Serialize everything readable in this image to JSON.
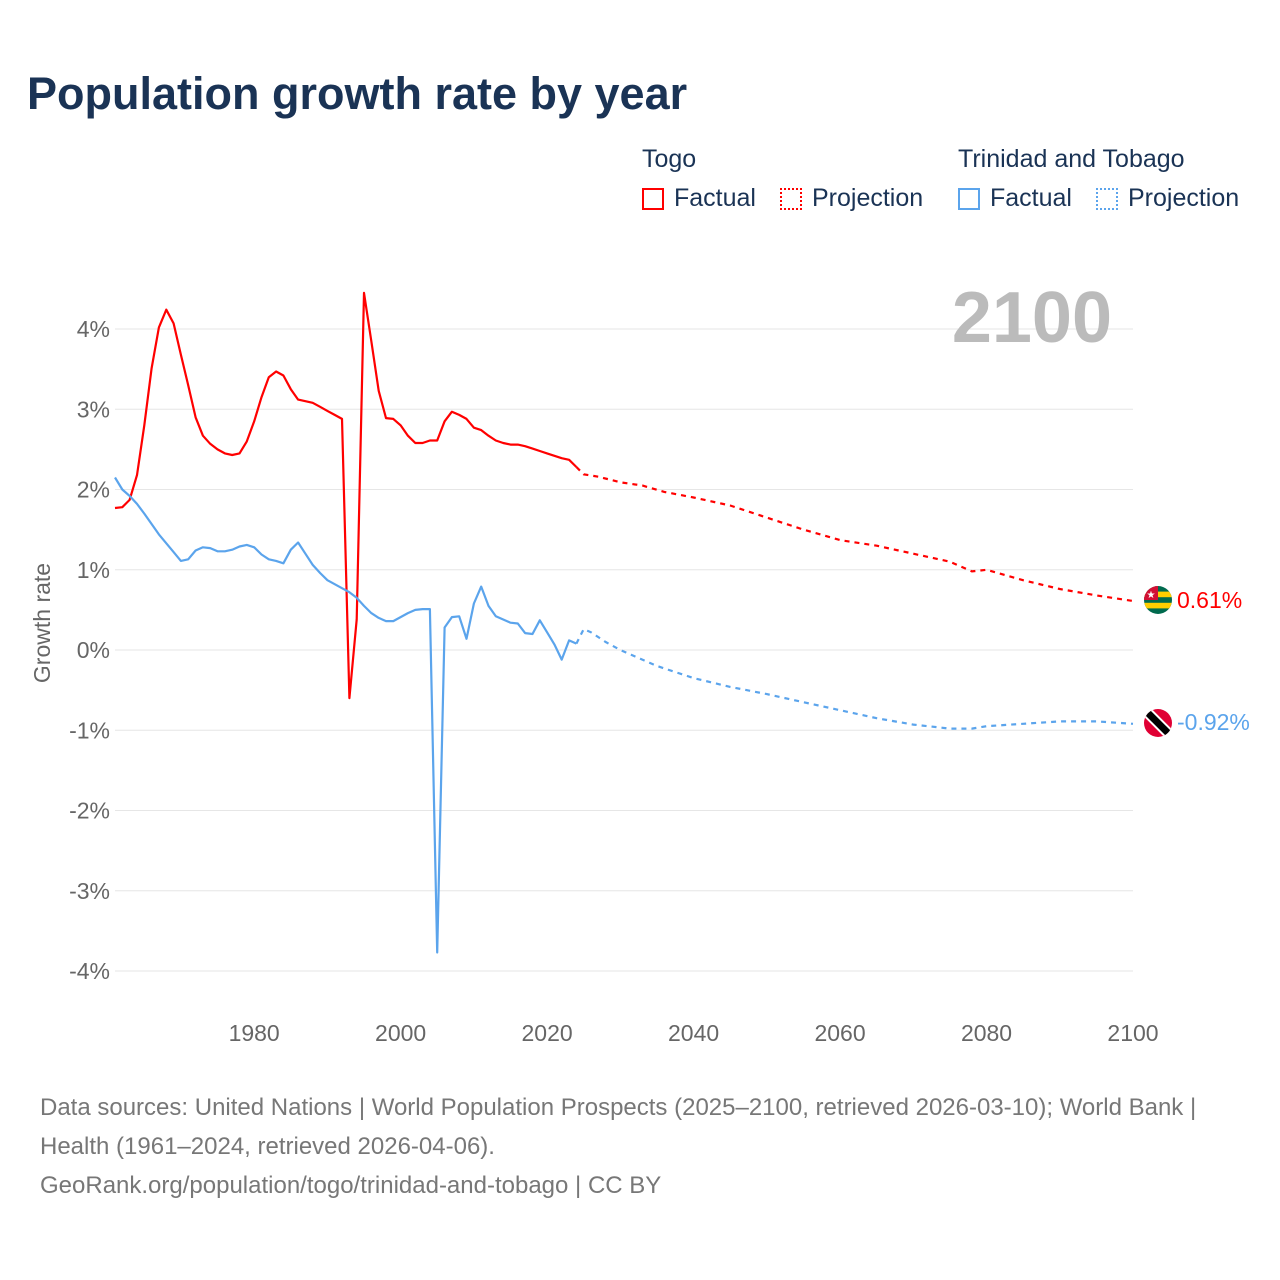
{
  "title": "Population growth rate by year",
  "legend": {
    "groups": [
      {
        "name": "Togo",
        "factual": "Factual",
        "projection": "Projection",
        "color": "#ff0000"
      },
      {
        "name": "Trinidad and Tobago",
        "factual": "Factual",
        "projection": "Projection",
        "color": "#5ba4ec"
      }
    ]
  },
  "year_label": "2100",
  "source": {
    "line1": "Data sources: United Nations | World Population Prospects (2025–2100, retrieved 2026-03-10); World Bank | Health (1961–2024, retrieved 2026-04-06).",
    "line2": "GeoRank.org/population/togo/trinidad-and-tobago | CC BY"
  },
  "chart_data": {
    "type": "line",
    "title": "Population growth rate by year",
    "xlabel": "",
    "ylabel": "Growth rate",
    "xlim": [
      1961,
      2100
    ],
    "ylim": [
      -4,
      4.5
    ],
    "x_ticks": [
      1980,
      2000,
      2020,
      2040,
      2060,
      2080,
      2100
    ],
    "x_tick_labels": [
      "1980",
      "2000",
      "2020",
      "2040",
      "2060",
      "2080",
      "2100"
    ],
    "y_ticks": [
      4,
      3,
      2,
      1,
      0,
      -1,
      -2,
      -3,
      -4
    ],
    "y_tick_labels": [
      "4%",
      "3%",
      "2%",
      "1%",
      "0%",
      "-1%",
      "-2%",
      "-3%",
      "-4%"
    ],
    "grid": true,
    "series": [
      {
        "name": "Togo",
        "color": "#ff0000",
        "end_label": "0.61%",
        "factual": {
          "x": [
            1961,
            1962,
            1963,
            1964,
            1965,
            1966,
            1967,
            1968,
            1969,
            1970,
            1971,
            1972,
            1973,
            1974,
            1975,
            1976,
            1977,
            1978,
            1979,
            1980,
            1981,
            1982,
            1983,
            1984,
            1985,
            1986,
            1987,
            1988,
            1989,
            1990,
            1991,
            1992,
            1993,
            1994,
            1995,
            1996,
            1997,
            1998,
            1999,
            2000,
            2001,
            2002,
            2003,
            2004,
            2005,
            2006,
            2007,
            2008,
            2009,
            2010,
            2011,
            2012,
            2013,
            2014,
            2015,
            2016,
            2017,
            2018,
            2019,
            2020,
            2021,
            2022,
            2023,
            2024
          ],
          "y": [
            1.77,
            1.78,
            1.87,
            2.18,
            2.8,
            3.51,
            4.02,
            4.24,
            4.07,
            3.68,
            3.3,
            2.9,
            2.67,
            2.57,
            2.5,
            2.45,
            2.43,
            2.45,
            2.6,
            2.85,
            3.15,
            3.4,
            3.47,
            3.42,
            3.25,
            3.12,
            3.1,
            3.08,
            3.03,
            2.98,
            2.93,
            2.88,
            -0.6,
            0.38,
            4.45,
            3.85,
            3.23,
            2.89,
            2.88,
            2.8,
            2.67,
            2.58,
            2.58,
            2.61,
            2.61,
            2.85,
            2.97,
            2.93,
            2.88,
            2.77,
            2.74,
            2.67,
            2.61,
            2.58,
            2.56,
            2.56,
            2.54,
            2.51,
            2.48,
            2.45,
            2.42,
            2.39,
            2.37,
            2.28
          ]
        },
        "projection": {
          "x": [
            2024,
            2025,
            2027,
            2030,
            2033,
            2036,
            2040,
            2045,
            2050,
            2055,
            2060,
            2065,
            2070,
            2075,
            2078,
            2080,
            2085,
            2090,
            2095,
            2100
          ],
          "y": [
            2.28,
            2.19,
            2.16,
            2.09,
            2.05,
            1.97,
            1.9,
            1.8,
            1.65,
            1.5,
            1.37,
            1.3,
            1.2,
            1.1,
            0.98,
            1.0,
            0.87,
            0.76,
            0.68,
            0.61
          ]
        }
      },
      {
        "name": "Trinidad and Tobago",
        "color": "#5ba4ec",
        "end_label": "-0.92%",
        "factual": {
          "x": [
            1961,
            1962,
            1963,
            1964,
            1965,
            1966,
            1967,
            1968,
            1969,
            1970,
            1971,
            1972,
            1973,
            1974,
            1975,
            1976,
            1977,
            1978,
            1979,
            1980,
            1981,
            1982,
            1983,
            1984,
            1985,
            1986,
            1987,
            1988,
            1989,
            1990,
            1991,
            1992,
            1993,
            1994,
            1995,
            1996,
            1997,
            1998,
            1999,
            2000,
            2001,
            2002,
            2003,
            2004,
            2005,
            2006,
            2007,
            2008,
            2009,
            2010,
            2011,
            2012,
            2013,
            2014,
            2015,
            2016,
            2017,
            2018,
            2019,
            2020,
            2021,
            2022,
            2023,
            2024
          ],
          "y": [
            2.15,
            2.0,
            1.92,
            1.82,
            1.7,
            1.57,
            1.44,
            1.33,
            1.22,
            1.11,
            1.13,
            1.24,
            1.28,
            1.27,
            1.23,
            1.23,
            1.25,
            1.29,
            1.31,
            1.28,
            1.19,
            1.13,
            1.11,
            1.08,
            1.25,
            1.34,
            1.2,
            1.06,
            0.96,
            0.87,
            0.82,
            0.77,
            0.72,
            0.65,
            0.55,
            0.46,
            0.4,
            0.36,
            0.36,
            0.41,
            0.46,
            0.5,
            0.51,
            0.51,
            -3.77,
            0.28,
            0.41,
            0.42,
            0.14,
            0.58,
            0.79,
            0.55,
            0.42,
            0.38,
            0.34,
            0.33,
            0.21,
            0.2,
            0.37,
            0.22,
            0.07,
            -0.12,
            0.12,
            0.08
          ]
        },
        "projection": {
          "x": [
            2024,
            2025,
            2026,
            2028,
            2030,
            2035,
            2040,
            2045,
            2050,
            2055,
            2060,
            2065,
            2070,
            2075,
            2078,
            2080,
            2085,
            2090,
            2095,
            2100
          ],
          "y": [
            0.08,
            0.26,
            0.22,
            0.1,
            0.0,
            -0.2,
            -0.35,
            -0.46,
            -0.55,
            -0.65,
            -0.75,
            -0.85,
            -0.93,
            -0.98,
            -0.98,
            -0.95,
            -0.92,
            -0.89,
            -0.89,
            -0.92
          ]
        }
      }
    ]
  }
}
